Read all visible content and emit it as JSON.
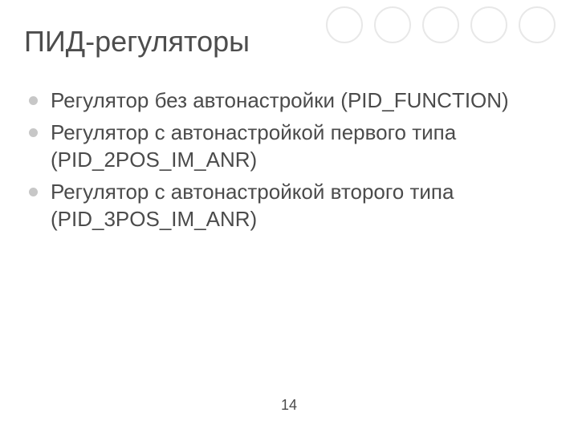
{
  "slide": {
    "title": "ПИД-регуляторы",
    "bullets": [
      "Регулятор без автонастройки (PID_FUNCTION)",
      "Регулятор с автонастройкой первого типа (PID_2POS_IM_ANR)",
      "Регулятор с автонастройкой второго типа (PID_3POS_IM_ANR)"
    ],
    "page_number": "14"
  },
  "style": {
    "background_color": "#ffffff",
    "title_color": "#4d4d4d",
    "title_fontsize": 36,
    "title_fontweight": 400,
    "body_color": "#4b4b4b",
    "body_fontsize": 26,
    "body_lineheight": 34,
    "bullet_dot_color": "#c7c7c7",
    "bullet_dot_size": 11,
    "decorative_circles": {
      "count": 5,
      "diameter": 46,
      "gap": 14,
      "border_color": "#e8e8e8",
      "border_width": 2,
      "fill": "#ffffff"
    },
    "page_number_fontsize": 18
  }
}
